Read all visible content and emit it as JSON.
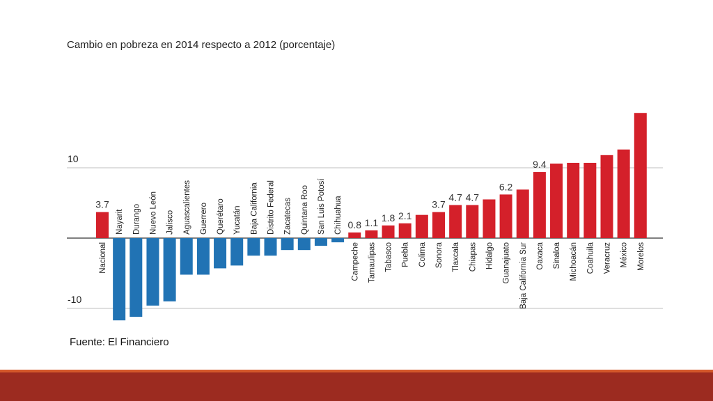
{
  "chart_data": {
    "type": "bar",
    "title": "Cambio en pobreza en 2014 respecto a 2012 (porcentaje)",
    "categories": [
      "Nacional",
      "Nayarit",
      "Durango",
      "Nuevo León",
      "Jalisco",
      "Aguascalientes",
      "Guerrero",
      "Querétaro",
      "Yucatán",
      "Baja California",
      "Distrito Federal",
      "Zacatecas",
      "Quintana Roo",
      "San Luis Potosí",
      "Chihuahua",
      "Campeche",
      "Tamaulipas",
      "Tabasco",
      "Puebla",
      "Colima",
      "Sonora",
      "Tlaxcala",
      "Chiapas",
      "Hidalgo",
      "Guanajuato",
      "Baja California Sur",
      "Oaxaca",
      "Sinaloa",
      "Michoacán",
      "Coahuila",
      "Veracruz",
      "México",
      "Morelos"
    ],
    "values": [
      3.7,
      -11.7,
      -11.2,
      -9.6,
      -9.0,
      -5.2,
      -5.2,
      -4.3,
      -3.9,
      -2.5,
      -2.5,
      -1.7,
      -1.7,
      -1.1,
      -0.6,
      0.8,
      1.1,
      1.8,
      2.1,
      3.3,
      3.7,
      4.7,
      4.7,
      5.5,
      6.2,
      6.9,
      9.4,
      10.6,
      10.7,
      10.7,
      11.8,
      12.6,
      17.8
    ],
    "value_labels": [
      "3.7",
      "",
      "",
      "",
      "",
      "",
      "",
      "",
      "",
      "",
      "",
      "",
      "",
      "",
      "",
      "0.8",
      "1.1",
      "1.8",
      "2.1",
      "",
      "3.7",
      "4.7",
      "4.7",
      "",
      "6.2",
      "",
      "9.4",
      "",
      "",
      "",
      "",
      "",
      ""
    ],
    "ylim": [
      -12,
      18
    ],
    "yticks": [
      "10",
      "-10"
    ],
    "yticks_values": [
      10,
      -10
    ],
    "grid": true,
    "colors": {
      "positive": "#d4202a",
      "negative": "#2173b4",
      "grid": "#cccccc",
      "axis": "#333333"
    }
  },
  "source_text": "Fuente: El Financiero",
  "footer": {
    "line_color": "#d4582a",
    "band_color": "#9c2b20"
  }
}
